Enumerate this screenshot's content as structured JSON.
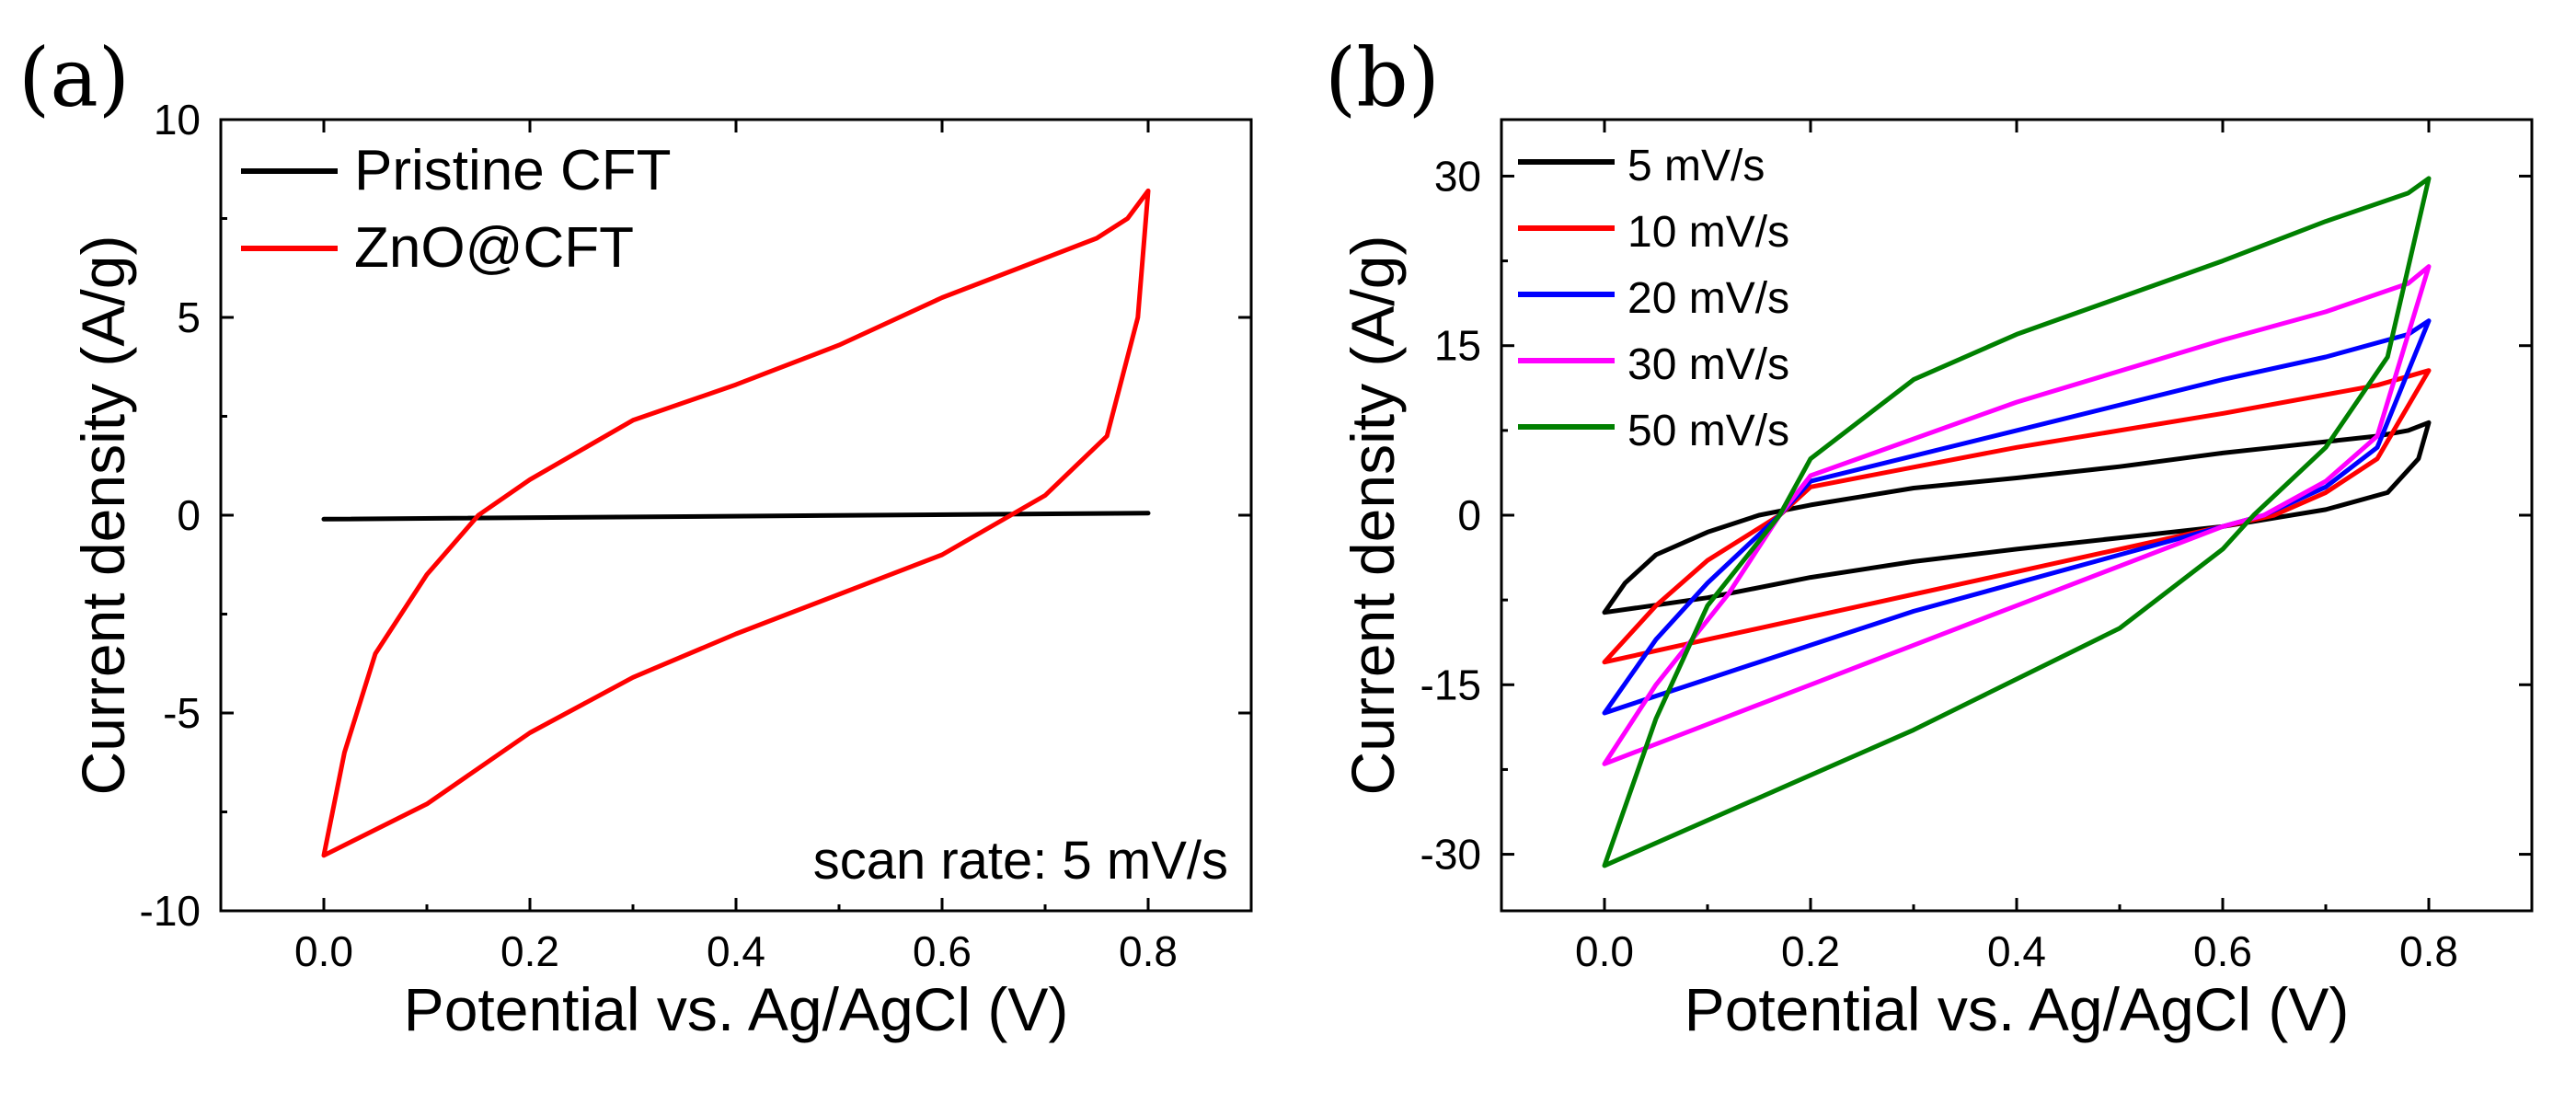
{
  "chart_data": [
    {
      "panel_label": "(a)",
      "type": "line",
      "xlabel": "Potential vs. Ag/AgCl (V)",
      "ylabel": "Current density (A/g)",
      "xlim": [
        -0.1,
        0.9
      ],
      "ylim": [
        -10,
        10
      ],
      "xticks": [
        0.0,
        0.2,
        0.4,
        0.6,
        0.8
      ],
      "xtick_labels": [
        "0.0",
        "0.2",
        "0.4",
        "0.6",
        "0.8"
      ],
      "yticks": [
        -10,
        -5,
        0,
        5,
        10
      ],
      "ytick_labels": [
        "-10",
        "-5",
        "0",
        "5",
        "10"
      ],
      "legend_position": "top-left",
      "annotation": "scan rate: 5 mV/s",
      "series": [
        {
          "name": "Pristine CFT",
          "color": "#000000",
          "x": [
            0.0,
            0.8,
            0.8,
            0.0,
            0.0
          ],
          "y": [
            -0.1,
            0.05,
            0.05,
            -0.1,
            -0.1
          ]
        },
        {
          "name": "ZnO@CFT",
          "color": "#ff0000",
          "x": [
            0.0,
            0.1,
            0.2,
            0.3,
            0.4,
            0.5,
            0.6,
            0.7,
            0.76,
            0.79,
            0.8,
            0.78,
            0.75,
            0.7,
            0.65,
            0.6,
            0.5,
            0.4,
            0.3,
            0.2,
            0.15,
            0.1,
            0.05,
            0.02,
            0.0
          ],
          "y": [
            -8.6,
            -7.3,
            -5.5,
            -4.1,
            -3.0,
            -2.0,
            -1.0,
            0.5,
            2.0,
            5.0,
            8.2,
            7.5,
            7.0,
            6.5,
            6.0,
            5.5,
            4.3,
            3.3,
            2.4,
            0.9,
            0.0,
            -1.5,
            -3.5,
            -6.0,
            -8.6
          ]
        }
      ]
    },
    {
      "panel_label": "(b)",
      "type": "line",
      "xlabel": "Potential vs. Ag/AgCl (V)",
      "ylabel": "Current density (A/g)",
      "xlim": [
        -0.1,
        0.9
      ],
      "ylim": [
        -35,
        35
      ],
      "xticks": [
        0.0,
        0.2,
        0.4,
        0.6,
        0.8
      ],
      "xtick_labels": [
        "0.0",
        "0.2",
        "0.4",
        "0.6",
        "0.8"
      ],
      "yticks": [
        -30,
        -15,
        0,
        15,
        30
      ],
      "ytick_labels": [
        "-30",
        "-15",
        "0",
        "15",
        "30"
      ],
      "legend_position": "top-left",
      "series": [
        {
          "name": "5 mV/s",
          "color": "#000000",
          "x": [
            0.0,
            0.1,
            0.2,
            0.3,
            0.4,
            0.5,
            0.6,
            0.7,
            0.76,
            0.79,
            0.8,
            0.78,
            0.75,
            0.7,
            0.65,
            0.6,
            0.5,
            0.4,
            0.3,
            0.2,
            0.15,
            0.1,
            0.05,
            0.02,
            0.0
          ],
          "y": [
            -8.6,
            -7.3,
            -5.5,
            -4.1,
            -3.0,
            -2.0,
            -1.0,
            0.5,
            2.0,
            5.0,
            8.2,
            7.5,
            7.0,
            6.5,
            6.0,
            5.5,
            4.3,
            3.3,
            2.4,
            0.9,
            0.0,
            -1.5,
            -3.5,
            -6.0,
            -8.6
          ]
        },
        {
          "name": "10 mV/s",
          "color": "#ff0000",
          "x": [
            0.0,
            0.1,
            0.2,
            0.3,
            0.4,
            0.5,
            0.6,
            0.65,
            0.7,
            0.75,
            0.8,
            0.75,
            0.6,
            0.4,
            0.2,
            0.17,
            0.1,
            0.05,
            0.0
          ],
          "y": [
            -13.0,
            -11.0,
            -9.0,
            -7.0,
            -5.0,
            -3.0,
            -1.0,
            0.0,
            2.0,
            5.0,
            12.8,
            11.5,
            9.0,
            6.0,
            2.5,
            0.0,
            -4.0,
            -8.0,
            -13.0
          ]
        },
        {
          "name": "20 mV/s",
          "color": "#0000ff",
          "x": [
            0.0,
            0.1,
            0.2,
            0.3,
            0.4,
            0.5,
            0.6,
            0.64,
            0.7,
            0.75,
            0.8,
            0.78,
            0.7,
            0.6,
            0.4,
            0.2,
            0.17,
            0.1,
            0.05,
            0.0
          ],
          "y": [
            -17.5,
            -14.5,
            -11.5,
            -8.5,
            -6.0,
            -3.5,
            -1.0,
            0.0,
            2.5,
            6.0,
            17.2,
            16.0,
            14.0,
            12.0,
            7.5,
            3.0,
            0.0,
            -6.0,
            -11.0,
            -17.5
          ]
        },
        {
          "name": "30 mV/s",
          "color": "#ff00ff",
          "x": [
            0.0,
            0.1,
            0.2,
            0.3,
            0.4,
            0.5,
            0.6,
            0.64,
            0.7,
            0.75,
            0.8,
            0.78,
            0.7,
            0.6,
            0.4,
            0.2,
            0.17,
            0.12,
            0.05,
            0.0
          ],
          "y": [
            -22.0,
            -18.5,
            -15.0,
            -11.5,
            -8.0,
            -4.5,
            -1.0,
            0.0,
            3.0,
            7.0,
            22.0,
            20.5,
            18.0,
            15.5,
            10.0,
            3.5,
            0.0,
            -7.0,
            -15.0,
            -22.0
          ]
        },
        {
          "name": "50 mV/s",
          "color": "#008000",
          "x": [
            0.0,
            0.1,
            0.2,
            0.3,
            0.4,
            0.5,
            0.6,
            0.63,
            0.7,
            0.76,
            0.8,
            0.78,
            0.7,
            0.6,
            0.4,
            0.3,
            0.2,
            0.17,
            0.1,
            0.05,
            0.0
          ],
          "y": [
            -31.0,
            -27.0,
            -23.0,
            -19.0,
            -14.5,
            -10.0,
            -3.0,
            0.0,
            6.0,
            14.0,
            29.8,
            28.5,
            26.0,
            22.5,
            16.0,
            12.0,
            5.0,
            0.0,
            -8.0,
            -18.0,
            -31.0
          ]
        }
      ]
    }
  ]
}
